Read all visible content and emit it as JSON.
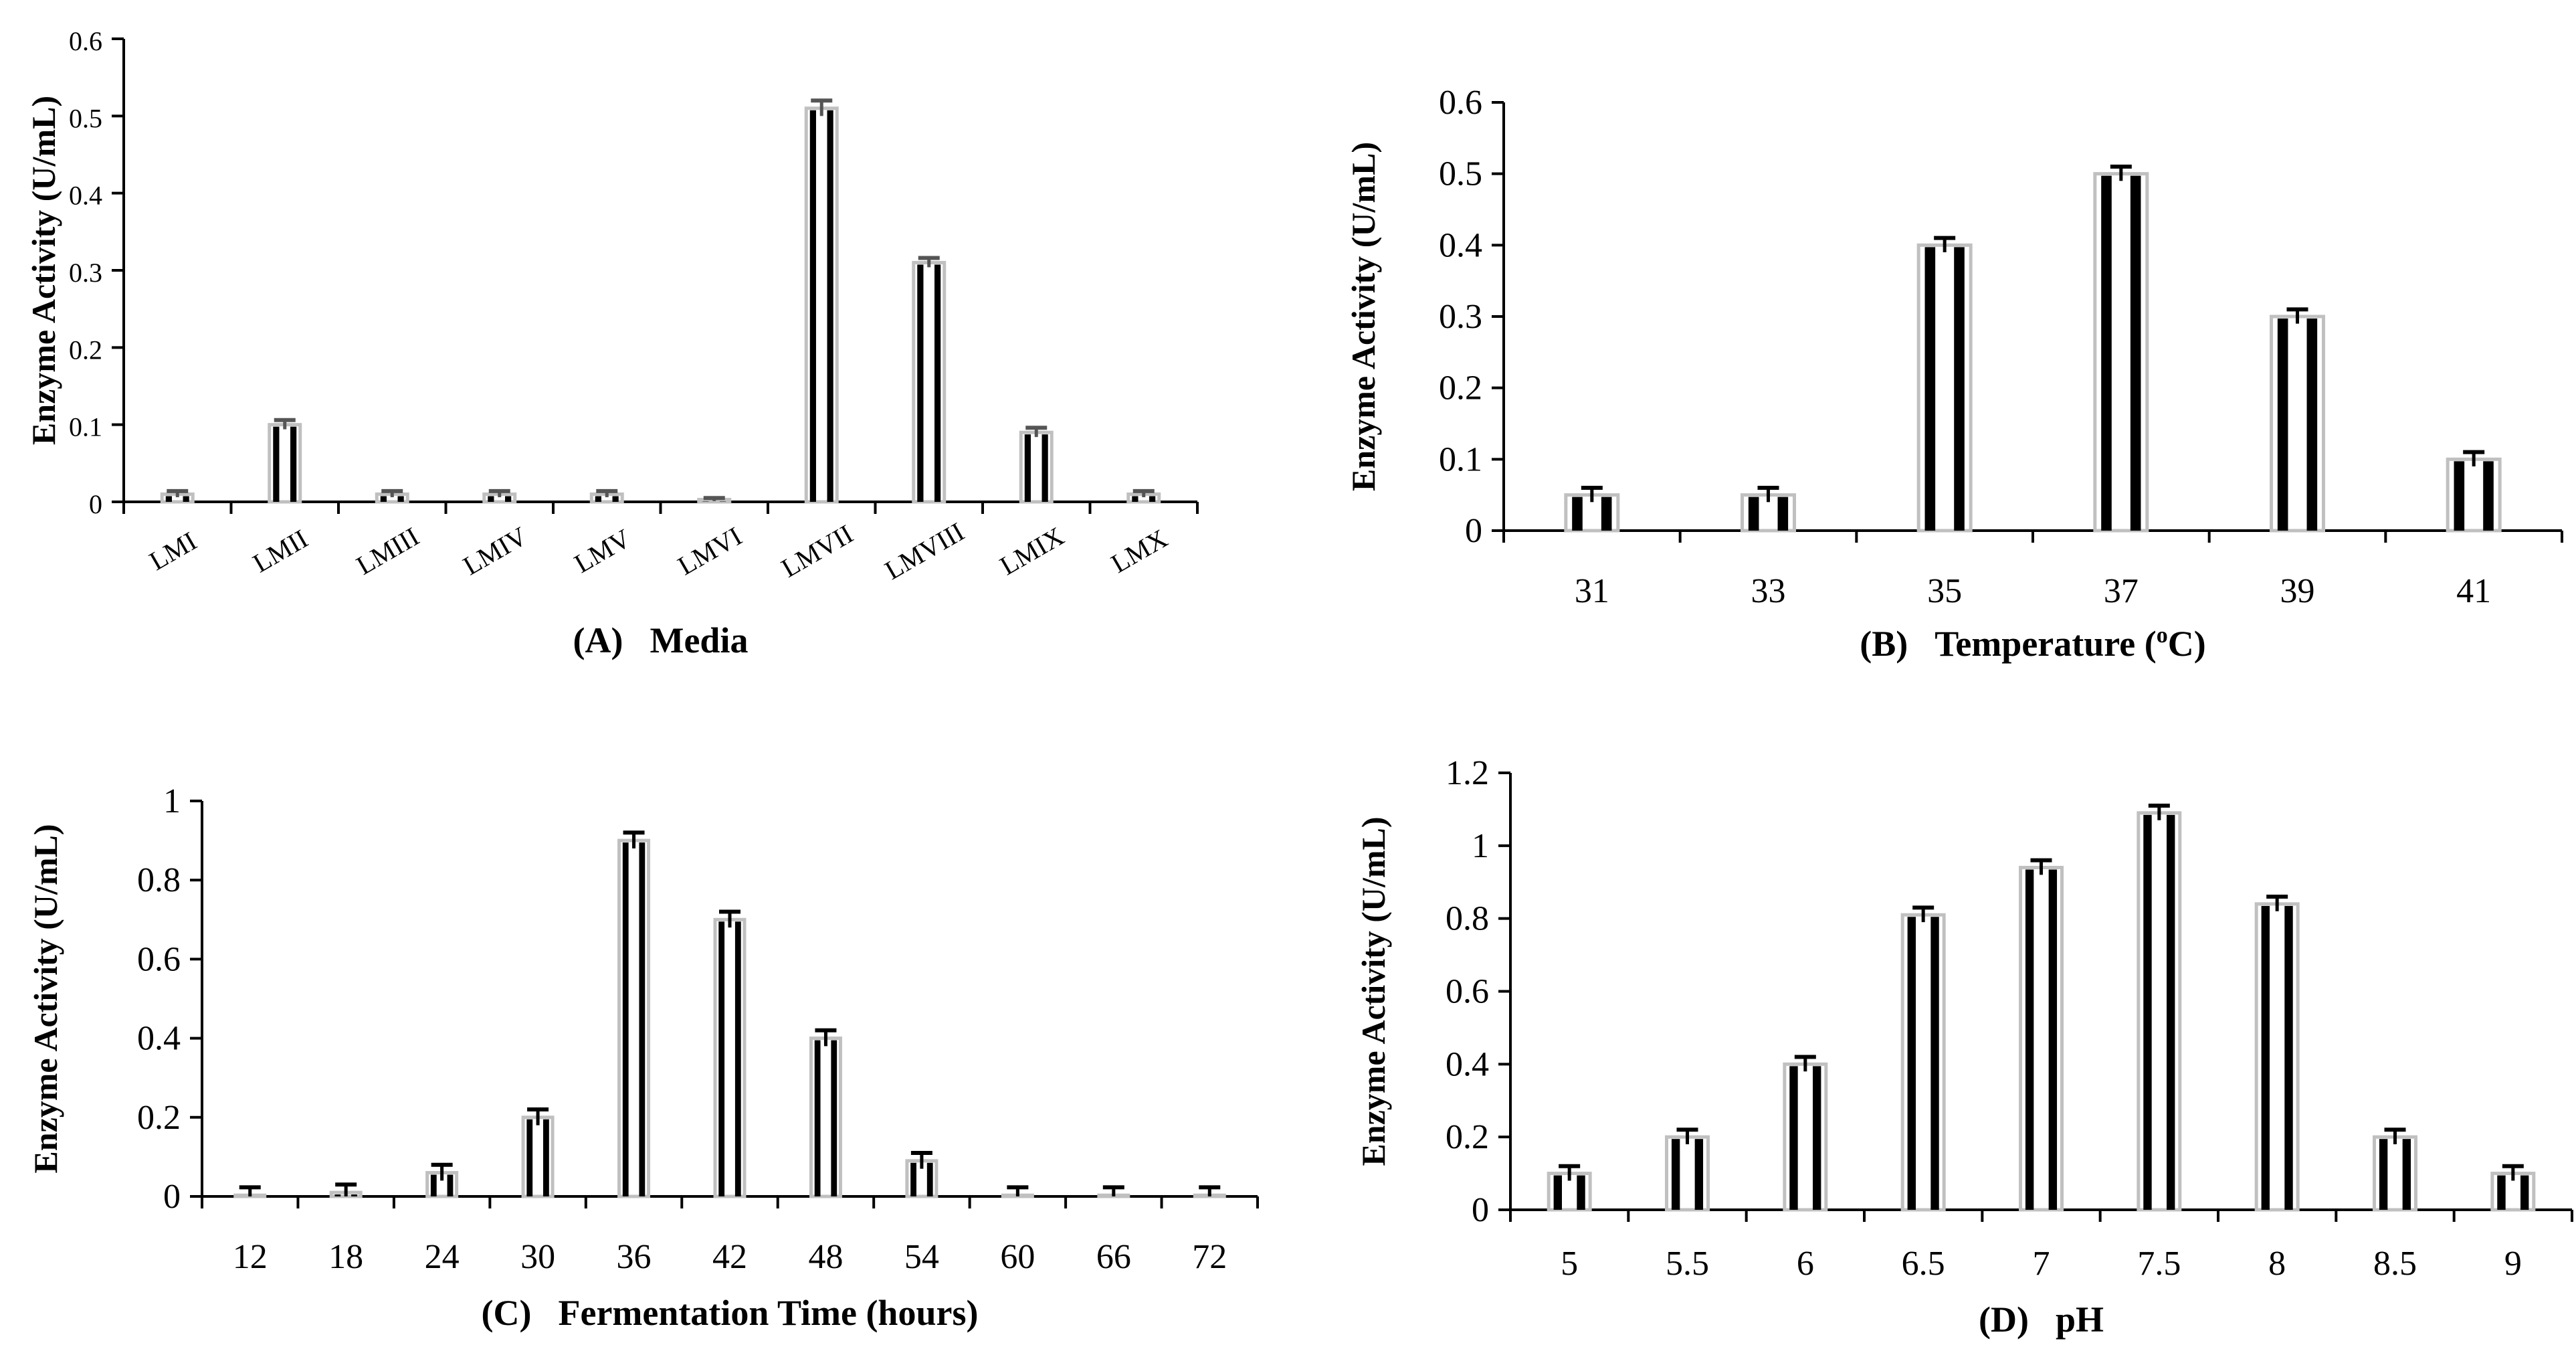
{
  "chart_data": [
    {
      "id": "A",
      "type": "bar",
      "categories": [
        "LMI",
        "LMII",
        "LMIII",
        "LMIV",
        "LMV",
        "LMVI",
        "LMVII",
        "LMVIII",
        "LMIX",
        "LMX"
      ],
      "values": [
        0.01,
        0.1,
        0.01,
        0.01,
        0.01,
        0.003,
        0.51,
        0.31,
        0.09,
        0.01
      ],
      "errors": [
        0.004,
        0.006,
        0.004,
        0.004,
        0.004,
        0.002,
        0.01,
        0.006,
        0.006,
        0.004
      ],
      "ylim": [
        0,
        0.6
      ],
      "yticks": [
        "0",
        "0.1",
        "0.2",
        "0.3",
        "0.4",
        "0.5",
        "0.6"
      ],
      "ylabel": "Enzyme Activity (U/mL)",
      "panel_label": "(A)",
      "xlabel": "Media",
      "rotated_ticks": true
    },
    {
      "id": "B",
      "type": "bar",
      "categories": [
        "31",
        "33",
        "35",
        "37",
        "39",
        "41"
      ],
      "values": [
        0.05,
        0.05,
        0.4,
        0.5,
        0.3,
        0.1
      ],
      "errors": [
        0.01,
        0.01,
        0.01,
        0.01,
        0.01,
        0.01
      ],
      "ylim": [
        0,
        0.6
      ],
      "yticks": [
        "0",
        "0.1",
        "0.2",
        "0.3",
        "0.4",
        "0.5",
        "0.6"
      ],
      "ylabel": "Enzyme Activity (U/mL)",
      "panel_label": "(B)",
      "xlabel": "Temperature (",
      "xlabel_sup": "o",
      "xlabel_end": "C)"
    },
    {
      "id": "C",
      "type": "bar",
      "categories": [
        "12",
        "18",
        "24",
        "30",
        "36",
        "42",
        "48",
        "54",
        "60",
        "66",
        "72"
      ],
      "values": [
        0.003,
        0.01,
        0.06,
        0.2,
        0.9,
        0.7,
        0.4,
        0.09,
        0.003,
        0.003,
        0.003
      ],
      "errors": [
        0.02,
        0.02,
        0.02,
        0.02,
        0.02,
        0.02,
        0.02,
        0.02,
        0.02,
        0.02,
        0.02
      ],
      "ylim": [
        0,
        1
      ],
      "yticks": [
        "0",
        "0.2",
        "0.4",
        "0.6",
        "0.8",
        "1"
      ],
      "ylabel": "Enzyme Activity (U/mL)",
      "panel_label": "(C)",
      "xlabel": "Fermentation Time (hours)"
    },
    {
      "id": "D",
      "type": "bar",
      "categories": [
        "5",
        "5.5",
        "6",
        "6.5",
        "7",
        "7.5",
        "8",
        "8.5",
        "9"
      ],
      "values": [
        0.1,
        0.2,
        0.4,
        0.81,
        0.94,
        1.09,
        0.84,
        0.2,
        0.1
      ],
      "errors": [
        0.02,
        0.02,
        0.02,
        0.02,
        0.02,
        0.02,
        0.02,
        0.02,
        0.02
      ],
      "ylim": [
        0,
        1.2
      ],
      "yticks": [
        "0",
        "0.2",
        "0.4",
        "0.6",
        "0.8",
        "1",
        "1.2"
      ],
      "ylabel": "Enzyme Activity (U/mL)",
      "panel_label": "(D)",
      "xlabel": "pH"
    }
  ],
  "colors": {
    "bar_stripe": "#000000",
    "bar_outline": "#c0c0c0",
    "error_bar": "#000000",
    "error_bar_A": "#555555",
    "axis": "#000000"
  }
}
